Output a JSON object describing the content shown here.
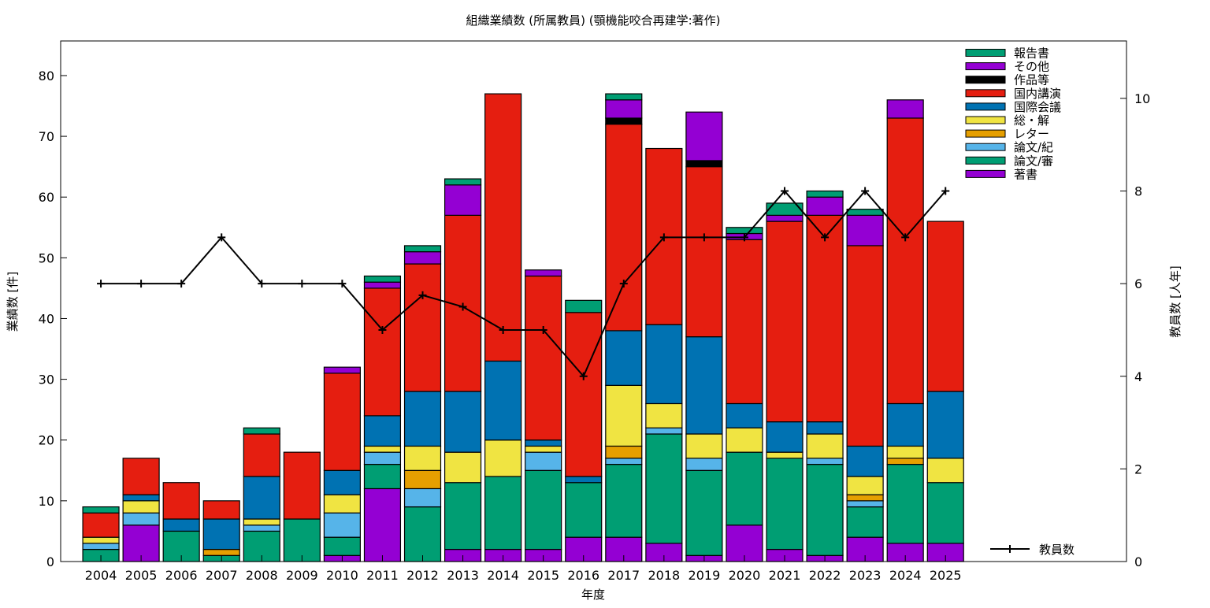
{
  "chart_data": {
    "type": "bar",
    "stacked": true,
    "title": "組織業績数 (所属教員) (顎機能咬合再建学:著作)",
    "xlabel": "年度",
    "ylabel": "業績数 [件]",
    "y2label": "教員数 [人年]",
    "ylim": [
      0,
      85.7
    ],
    "y2lim": [
      0,
      11.24
    ],
    "yticks": [
      0,
      10,
      20,
      30,
      40,
      50,
      60,
      70,
      80
    ],
    "y2ticks": [
      0,
      2,
      4,
      6,
      8,
      10
    ],
    "grid": false,
    "legend_position": "top-right",
    "categories": [
      "2004",
      "2005",
      "2006",
      "2007",
      "2008",
      "2009",
      "2010",
      "2011",
      "2012",
      "2013",
      "2014",
      "2015",
      "2016",
      "2017",
      "2018",
      "2019",
      "2020",
      "2021",
      "2022",
      "2023",
      "2024",
      "2025"
    ],
    "series": [
      {
        "name": "著書",
        "color": "#9400d3",
        "values": [
          0,
          6,
          0,
          0,
          0,
          0,
          1,
          12,
          0,
          2,
          2,
          2,
          4,
          4,
          3,
          1,
          6,
          2,
          1,
          4,
          3,
          3
        ]
      },
      {
        "name": "論文/審",
        "color": "#009e73",
        "values": [
          2,
          0,
          5,
          1,
          5,
          7,
          3,
          4,
          9,
          11,
          12,
          13,
          9,
          12,
          18,
          14,
          12,
          15,
          15,
          5,
          13,
          10
        ]
      },
      {
        "name": "論文/紀",
        "color": "#56b4e9",
        "values": [
          1,
          2,
          0,
          0,
          1,
          0,
          4,
          2,
          3,
          0,
          0,
          3,
          0,
          1,
          1,
          2,
          0,
          0,
          1,
          1,
          0,
          0
        ]
      },
      {
        "name": "レター",
        "color": "#e69f00",
        "values": [
          0,
          0,
          0,
          1,
          0,
          0,
          0,
          0,
          3,
          0,
          0,
          0,
          0,
          2,
          0,
          0,
          0,
          0,
          0,
          1,
          1,
          0
        ]
      },
      {
        "name": "総・解",
        "color": "#f0e442",
        "values": [
          1,
          2,
          0,
          0,
          1,
          0,
          3,
          1,
          4,
          5,
          6,
          1,
          0,
          10,
          4,
          4,
          4,
          1,
          4,
          3,
          2,
          4
        ]
      },
      {
        "name": "国際会議",
        "color": "#0072b2",
        "values": [
          0,
          1,
          2,
          5,
          7,
          0,
          4,
          5,
          9,
          10,
          13,
          1,
          1,
          9,
          13,
          16,
          4,
          5,
          2,
          5,
          7,
          11
        ]
      },
      {
        "name": "国内講演",
        "color": "#e51e10",
        "values": [
          4,
          6,
          6,
          3,
          7,
          11,
          16,
          21,
          21,
          29,
          44,
          27,
          27,
          34,
          29,
          28,
          27,
          33,
          34,
          33,
          47,
          28
        ]
      },
      {
        "name": "作品等",
        "color": "#000000",
        "values": [
          0,
          0,
          0,
          0,
          0,
          0,
          0,
          0,
          0,
          0,
          0,
          0,
          0,
          1,
          0,
          1,
          0,
          0,
          0,
          0,
          0,
          0
        ]
      },
      {
        "name": "その他",
        "color": "#9400d3",
        "values": [
          0,
          0,
          0,
          0,
          0,
          0,
          1,
          1,
          2,
          5,
          0,
          1,
          0,
          3,
          0,
          8,
          1,
          1,
          3,
          5,
          3,
          0
        ]
      },
      {
        "name": "報告書",
        "color": "#009e73",
        "values": [
          1,
          0,
          0,
          0,
          1,
          0,
          0,
          1,
          1,
          1,
          0,
          0,
          2,
          1,
          0,
          0,
          1,
          2,
          1,
          1,
          0,
          0
        ]
      }
    ],
    "line_series": {
      "name": "教員数",
      "axis": "right",
      "color": "#000000",
      "values": [
        6,
        6,
        6,
        7,
        6,
        6,
        6,
        5,
        5.75,
        5.5,
        5,
        5,
        4,
        6,
        7,
        7,
        7,
        8,
        7,
        8,
        7,
        8
      ]
    }
  }
}
